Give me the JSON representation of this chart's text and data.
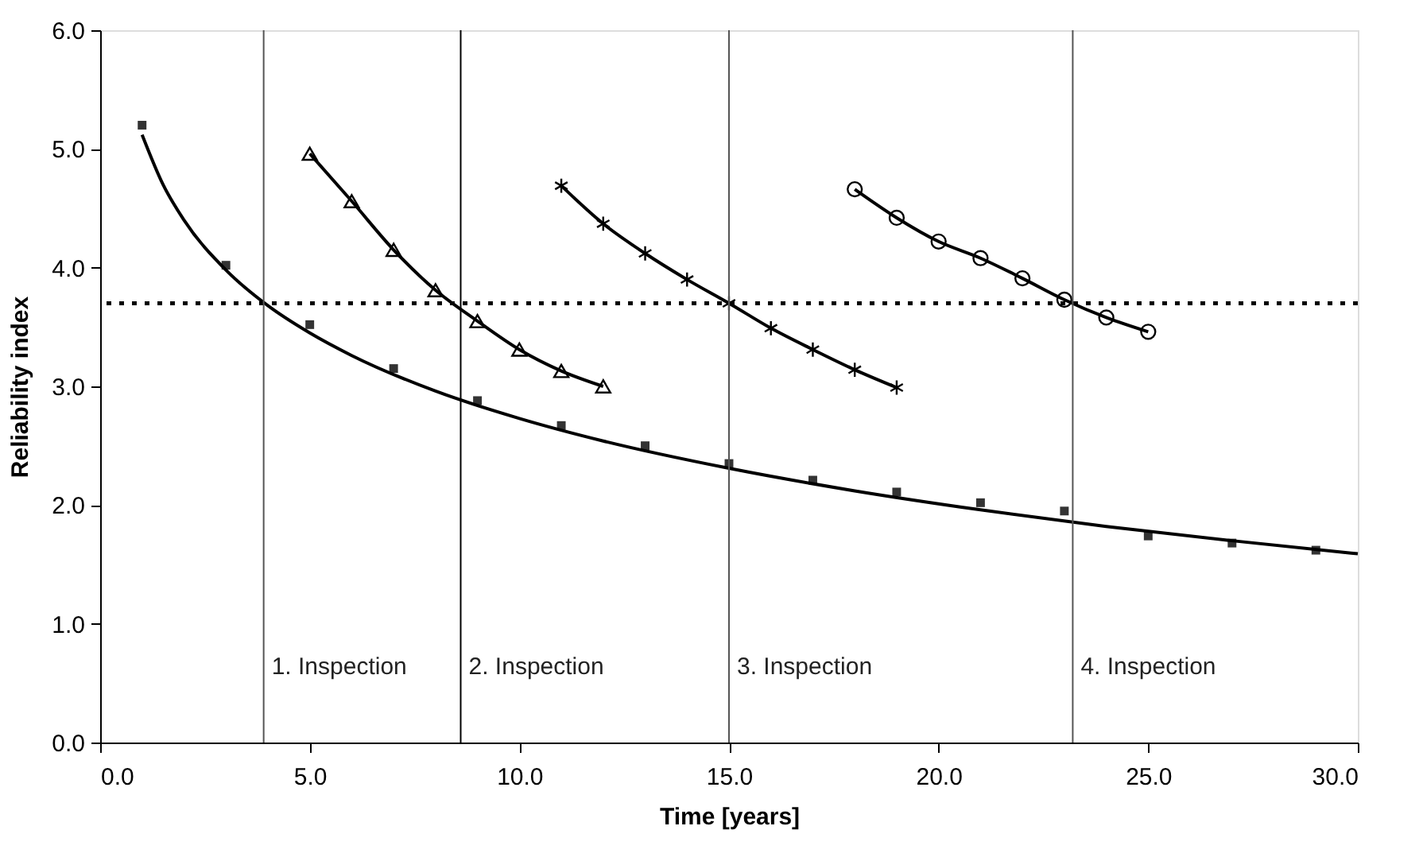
{
  "chart_data": {
    "type": "line",
    "xlabel": "Time  [years]",
    "ylabel": "Reliability index",
    "xlim": [
      0,
      30
    ],
    "ylim": [
      0,
      6
    ],
    "xticks": [
      {
        "value": 0,
        "label": "0.0"
      },
      {
        "value": 5,
        "label": "5.0"
      },
      {
        "value": 10,
        "label": "10.0"
      },
      {
        "value": 15,
        "label": "15.0"
      },
      {
        "value": 20,
        "label": "20.0"
      },
      {
        "value": 25,
        "label": "25.0"
      },
      {
        "value": 30,
        "label": "30.0"
      }
    ],
    "yticks": [
      {
        "value": 0,
        "label": "0.0"
      },
      {
        "value": 1,
        "label": "1.0"
      },
      {
        "value": 2,
        "label": "2.0"
      },
      {
        "value": 3,
        "label": "3.0"
      },
      {
        "value": 4,
        "label": "4.0"
      },
      {
        "value": 5,
        "label": "5.0"
      },
      {
        "value": 6,
        "label": "6.0"
      }
    ],
    "grid": false,
    "series": [
      {
        "type": "scatter",
        "marker": "square",
        "color": "#333333",
        "x": [
          1,
          3,
          5,
          7,
          9,
          11,
          13,
          15,
          17,
          19,
          21,
          23,
          25,
          27,
          29
        ],
        "values": [
          5.2,
          4.02,
          3.52,
          3.15,
          2.88,
          2.67,
          2.5,
          2.35,
          2.21,
          2.11,
          2.02,
          1.95,
          1.74,
          1.68,
          1.62
        ]
      },
      {
        "marker": "none",
        "line_style": "solid",
        "color": "#000000",
        "x": [
          1,
          1.5,
          2,
          3,
          4,
          5,
          6,
          8,
          10,
          12,
          15,
          18,
          21,
          24,
          27,
          30
        ],
        "values": [
          5.12,
          4.7,
          4.4,
          3.98,
          3.68,
          3.45,
          3.26,
          2.96,
          2.73,
          2.54,
          2.31,
          2.12,
          1.96,
          1.82,
          1.7,
          1.59
        ]
      },
      {
        "marker": "triangle",
        "line_style": "solid",
        "color": "#000000",
        "x": [
          5,
          6,
          7,
          8,
          9,
          10,
          11,
          12
        ],
        "values": [
          4.96,
          4.56,
          4.15,
          3.81,
          3.55,
          3.31,
          3.13,
          3.0
        ]
      },
      {
        "marker": "cross",
        "line_style": "solid",
        "color": "#000000",
        "x": [
          11,
          12,
          13,
          14,
          15,
          16,
          17,
          18,
          19
        ],
        "values": [
          4.69,
          4.37,
          4.12,
          3.9,
          3.7,
          3.49,
          3.31,
          3.14,
          2.99
        ]
      },
      {
        "marker": "circle",
        "line_style": "solid",
        "color": "#000000",
        "x": [
          18,
          19,
          20,
          21,
          22,
          23,
          24,
          25
        ],
        "values": [
          4.66,
          4.42,
          4.22,
          4.08,
          3.91,
          3.73,
          3.58,
          3.46
        ]
      }
    ],
    "ref_lines": [
      {
        "axis": "y",
        "value": 3.7,
        "line_style": "dotted",
        "color": "#000000"
      },
      {
        "axis": "x",
        "value": 3.9,
        "label": "1. Inspection",
        "color": "#555555",
        "line_style": "solid"
      },
      {
        "axis": "x",
        "value": 8.6,
        "label": "2. Inspection",
        "color": "#000000",
        "line_style": "solid"
      },
      {
        "axis": "x",
        "value": 15.0,
        "label": "3. Inspection",
        "color": "#555555",
        "line_style": "solid"
      },
      {
        "axis": "x",
        "value": 23.2,
        "label": "4. Inspection",
        "color": "#555555",
        "line_style": "solid"
      }
    ]
  }
}
